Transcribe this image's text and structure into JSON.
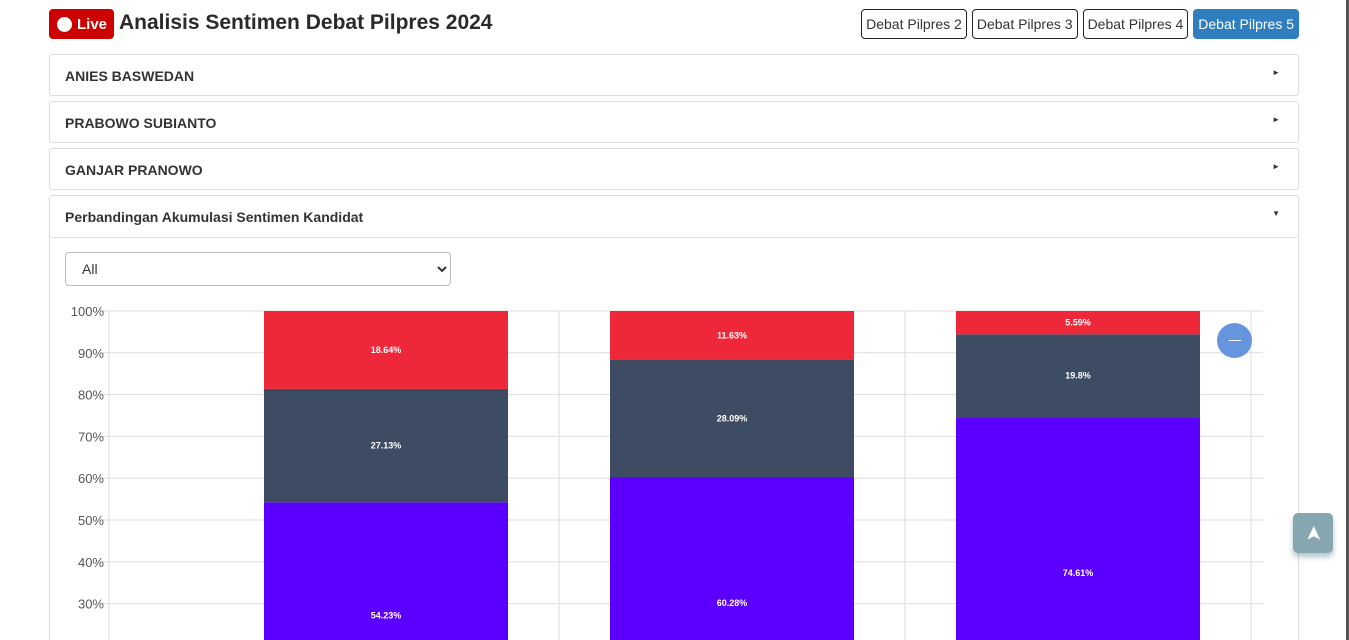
{
  "header": {
    "live_label": "Live",
    "title": "Analisis Sentimen Debat Pilpres 2024",
    "tabs": [
      {
        "label": "Debat Pilpres 2",
        "active": false
      },
      {
        "label": "Debat Pilpres 3",
        "active": false
      },
      {
        "label": "Debat Pilpres 4",
        "active": false
      },
      {
        "label": "Debat Pilpres 5",
        "active": true
      }
    ]
  },
  "accordions": [
    {
      "label": "ANIES BASWEDAN",
      "icon": "triangle-right"
    },
    {
      "label": "PRABOWO SUBIANTO",
      "icon": "triangle-right"
    },
    {
      "label": "GANJAR PRANOWO",
      "icon": "triangle-right"
    }
  ],
  "panel": {
    "title": "Perbandingan Akumulasi Sentimen Kandidat",
    "icon": "triangle-down",
    "filter_value": "All"
  },
  "chart_data": {
    "type": "bar",
    "stacked": true,
    "yticks": [
      "30%",
      "40%",
      "50%",
      "60%",
      "70%",
      "80%",
      "90%",
      "100%"
    ],
    "ylim": [
      0,
      100
    ],
    "series": [
      {
        "color": "#5b00ff",
        "values": [
          54.23,
          60.28,
          74.61
        ],
        "labels": [
          "54.23%",
          "60.28%",
          "74.61%"
        ]
      },
      {
        "color": "#3d4b63",
        "values": [
          27.13,
          28.09,
          19.8
        ],
        "labels": [
          "27.13%",
          "28.09%",
          "19.8%"
        ]
      },
      {
        "color": "#ee2838",
        "values": [
          18.64,
          11.63,
          5.59
        ],
        "labels": [
          "18.64%",
          "11.63%",
          "5.59%"
        ]
      }
    ]
  }
}
